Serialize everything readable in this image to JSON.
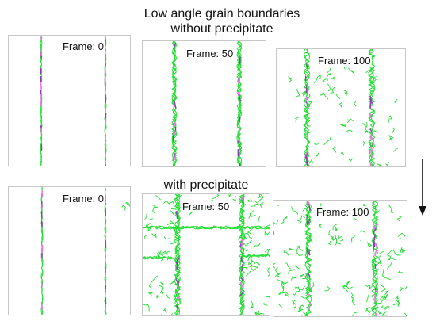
{
  "title": {
    "line1": "Low angle grain boundaries",
    "line2": "without precipitate"
  },
  "subtitle": "with precipitate",
  "panels": {
    "top": [
      {
        "label": "Frame: 0"
      },
      {
        "label": "Frame: 50"
      },
      {
        "label": "Frame: 100"
      }
    ],
    "bottom": [
      {
        "label": "Frame: 0"
      },
      {
        "label": "Frame: 50"
      },
      {
        "label": "Frame: 100"
      }
    ]
  },
  "colors": {
    "boundary_green": "#22dd33",
    "defect_pink": "#ee77ee",
    "core_purple": "#8844aa",
    "frame_border": "#c8c8c8",
    "arrow": "#111111"
  },
  "icons": {
    "time_arrow": "down-arrow-icon"
  }
}
